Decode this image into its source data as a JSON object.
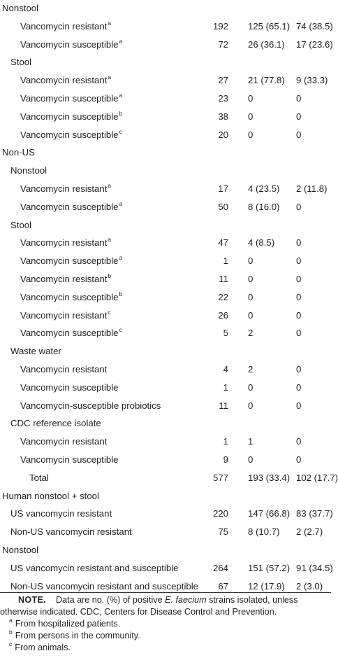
{
  "rows": [
    {
      "label": "Nonstool",
      "sup": "",
      "level": 0,
      "n": "",
      "c1": "",
      "c2": ""
    },
    {
      "label": "Vancomycin resistant",
      "sup": "a",
      "level": 2,
      "n": "192",
      "c1": "125 (65.1)",
      "c2": "74 (38.5)"
    },
    {
      "label": "Vancomycin susceptible",
      "sup": "a",
      "level": 2,
      "n": "72",
      "c1": "26 (36.1)",
      "c2": "17 (23.6)"
    },
    {
      "label": "Stool",
      "sup": "",
      "level": 1,
      "n": "",
      "c1": "",
      "c2": ""
    },
    {
      "label": "Vancomycin resistant",
      "sup": "a",
      "level": 2,
      "n": "27",
      "c1": "21 (77.8)",
      "c2": "9 (33.3)"
    },
    {
      "label": "Vancomycin susceptible",
      "sup": "a",
      "level": 2,
      "n": "23",
      "c1": "0",
      "c2": "0"
    },
    {
      "label": "Vancomycin susceptible",
      "sup": "b",
      "level": 2,
      "n": "38",
      "c1": "0",
      "c2": "0"
    },
    {
      "label": "Vancomycin susceptible",
      "sup": "c",
      "level": 2,
      "n": "20",
      "c1": "0",
      "c2": "0"
    },
    {
      "label": "Non-US",
      "sup": "",
      "level": 0,
      "n": "",
      "c1": "",
      "c2": ""
    },
    {
      "label": "Nonstool",
      "sup": "",
      "level": 1,
      "n": "",
      "c1": "",
      "c2": ""
    },
    {
      "label": "Vancomycin resistant",
      "sup": "a",
      "level": 2,
      "n": "17",
      "c1": "4 (23.5)",
      "c2": "2 (11.8)"
    },
    {
      "label": "Vancomycin susceptible",
      "sup": "a",
      "level": 2,
      "n": "50",
      "c1": "8 (16.0)",
      "c2": "0"
    },
    {
      "label": "Stool",
      "sup": "",
      "level": 1,
      "n": "",
      "c1": "",
      "c2": ""
    },
    {
      "label": "Vancomycin resistant",
      "sup": "a",
      "level": 2,
      "n": "47",
      "c1": "4 (8.5)",
      "c2": "0"
    },
    {
      "label": "Vancomycin susceptible",
      "sup": "a",
      "level": 2,
      "n": "1",
      "c1": "0",
      "c2": "0"
    },
    {
      "label": "Vancomycin resistant",
      "sup": "b",
      "level": 2,
      "n": "11",
      "c1": "0",
      "c2": "0"
    },
    {
      "label": "Vancomycin susceptible",
      "sup": "b",
      "level": 2,
      "n": "22",
      "c1": "0",
      "c2": "0"
    },
    {
      "label": "Vancomycin resistant",
      "sup": "c",
      "level": 2,
      "n": "26",
      "c1": "0",
      "c2": "0"
    },
    {
      "label": "Vancomycin susceptible",
      "sup": "c",
      "level": 2,
      "n": "5",
      "c1": "2",
      "c2": "0"
    },
    {
      "label": "Waste water",
      "sup": "",
      "level": 1,
      "n": "",
      "c1": "",
      "c2": ""
    },
    {
      "label": "Vancomycin resistant",
      "sup": "",
      "level": 2,
      "n": "4",
      "c1": "2",
      "c2": "0"
    },
    {
      "label": "Vancomycin susceptible",
      "sup": "",
      "level": 2,
      "n": "1",
      "c1": "0",
      "c2": "0"
    },
    {
      "label": "Vancomycin-susceptible probiotics",
      "sup": "",
      "level": 2,
      "n": "11",
      "c1": "0",
      "c2": "0"
    },
    {
      "label": "CDC reference isolate",
      "sup": "",
      "level": 1,
      "n": "",
      "c1": "",
      "c2": ""
    },
    {
      "label": "Vancomycin resistant",
      "sup": "",
      "level": 2,
      "n": "1",
      "c1": "1",
      "c2": "0"
    },
    {
      "label": "Vancomycin susceptible",
      "sup": "",
      "level": 2,
      "n": "9",
      "c1": "0",
      "c2": "0"
    },
    {
      "label": "Total",
      "sup": "",
      "level": 3,
      "n": "577",
      "c1": "193 (33.4)",
      "c2": "102 (17.7)"
    },
    {
      "label": "Human nonstool + stool",
      "sup": "",
      "level": 0,
      "n": "",
      "c1": "",
      "c2": ""
    },
    {
      "label": "US vancomycin resistant",
      "sup": "",
      "level": 1,
      "n": "220",
      "c1": "147 (66.8)",
      "c2": "83 (37.7)"
    },
    {
      "label": "Non-US vancomycin resistant",
      "sup": "",
      "level": 1,
      "n": "75",
      "c1": "8 (10.7)",
      "c2": "2 (2.7)"
    },
    {
      "label": "Nonstool",
      "sup": "",
      "level": 0,
      "n": "",
      "c1": "",
      "c2": ""
    },
    {
      "label": "US vancomycin resistant and susceptible",
      "sup": "",
      "level": 1,
      "n": "264",
      "c1": "151 (57.2)",
      "c2": "91 (34.5)"
    },
    {
      "label": "Non-US vancomycin resistant and susceptible",
      "sup": "",
      "level": 1,
      "n": "67",
      "c1": "12 (17.9)",
      "c2": "2 (3.0)"
    }
  ],
  "note": {
    "label": "NOTE.",
    "text_before": "Data are no. (%) of positive ",
    "species": "E. faecium",
    "text_after": " strains isolated, unless otherwise indicated. CDC, Centers for Disease Control and Prevention."
  },
  "footnotes": [
    {
      "mark": "a",
      "text": "From hospitalized patients."
    },
    {
      "mark": "b",
      "text": "From persons in the community."
    },
    {
      "mark": "c",
      "text": "From animals."
    }
  ]
}
